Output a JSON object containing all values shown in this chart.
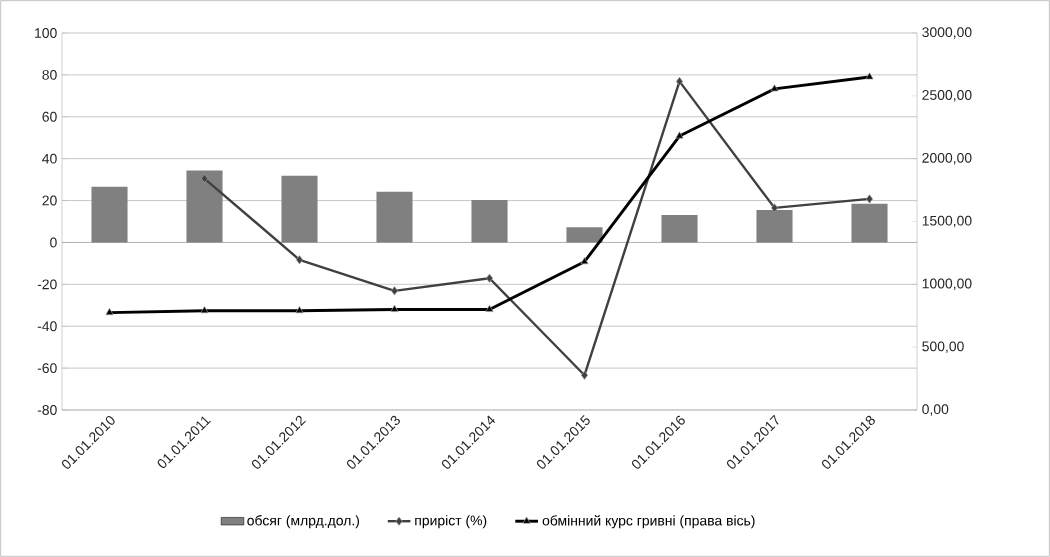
{
  "chart_data": {
    "type": "bar",
    "categories": [
      "01.01.2010",
      "01.01.2011",
      "01.01.2012",
      "01.01.2013",
      "01.01.2014",
      "01.01.2015",
      "01.01.2016",
      "01.01.2017",
      "01.01.2018"
    ],
    "series": [
      {
        "name": "обсяг (млрд.дол.)",
        "color": "#808080",
        "values": [
          26.6,
          34.3,
          31.9,
          24.2,
          20.3,
          7.2,
          13.1,
          15.5,
          18.5
        ]
      },
      {
        "name": "приріст (%)",
        "type": "line",
        "color": "#404040",
        "marker": "diamond",
        "values": [
          null,
          30.5,
          -8.3,
          -23.1,
          -17.1,
          -63.4,
          76.9,
          16.5,
          20.8
        ]
      },
      {
        "name": "обмінний курс гривні (права вісь)",
        "type": "line",
        "color": "#000000",
        "marker": "triangle",
        "axis": "y2",
        "values": [
          775,
          790,
          790,
          800,
          800,
          1180,
          2180,
          2555,
          2650
        ]
      }
    ],
    "ylim": [
      -80,
      100
    ],
    "yticks": [
      -80,
      -60,
      -40,
      -20,
      0,
      20,
      40,
      60,
      80,
      100
    ],
    "y2lim": [
      0,
      3000
    ],
    "y2ticks": [
      {
        "value": 0,
        "label": "0,00"
      },
      {
        "value": 500,
        "label": "500,00"
      },
      {
        "value": 1000,
        "label": "1000,00"
      },
      {
        "value": 1500,
        "label": "1500,00"
      },
      {
        "value": 2000,
        "label": "2000,00"
      },
      {
        "value": 2500,
        "label": "2500,00"
      },
      {
        "value": 3000,
        "label": "3000,00"
      }
    ],
    "grid": "y",
    "legend": "bottom"
  }
}
